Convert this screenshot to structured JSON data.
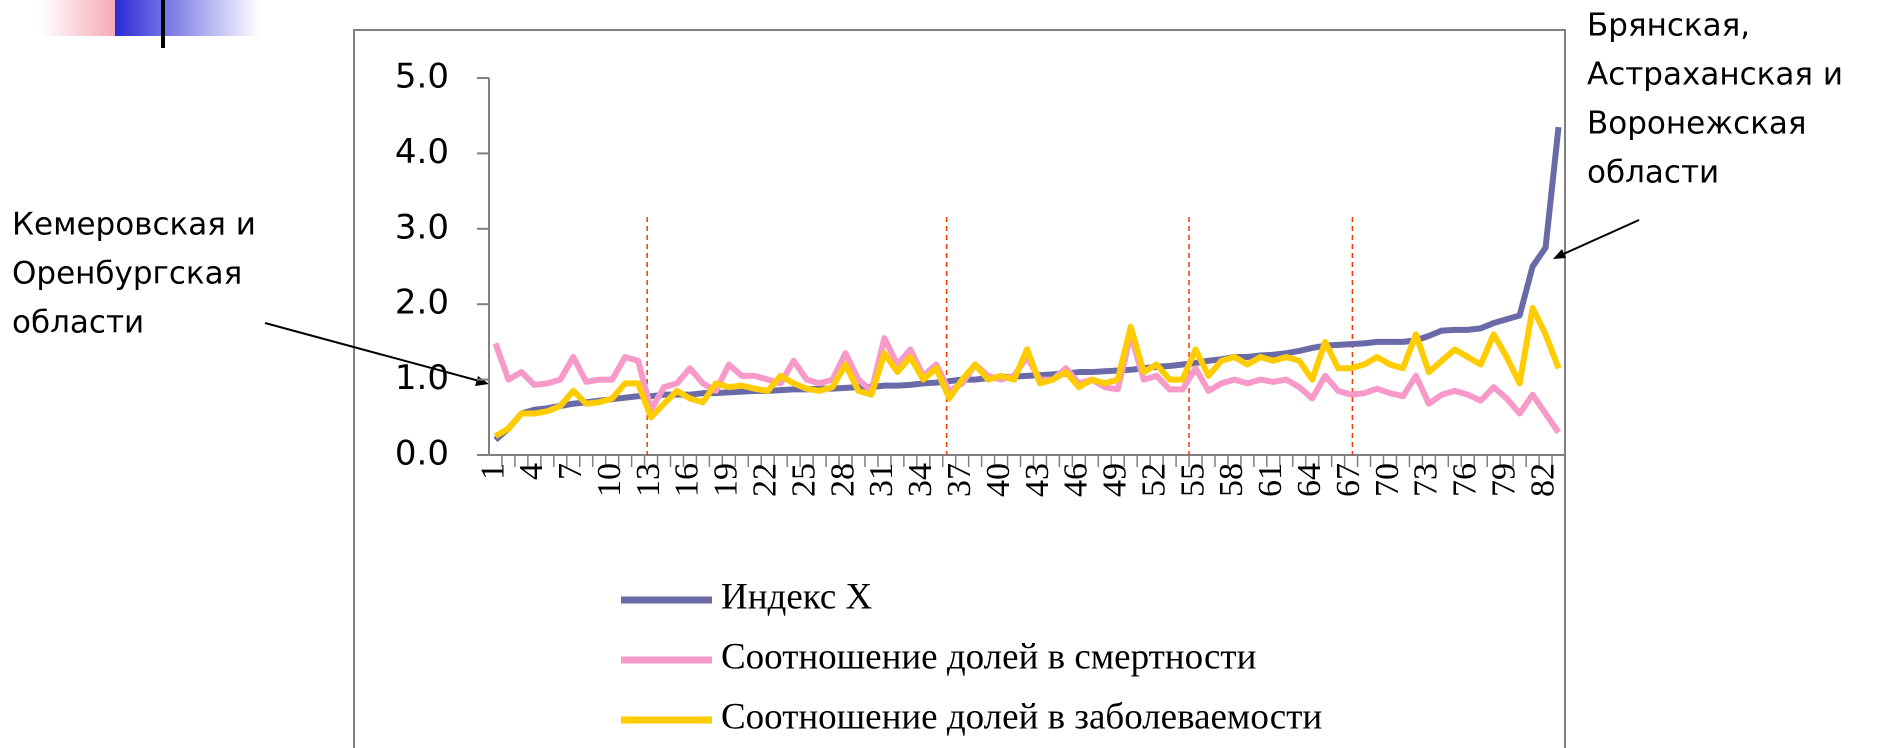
{
  "chart_data": {
    "type": "line",
    "categories": [
      1,
      null,
      null,
      4,
      null,
      null,
      7,
      null,
      null,
      10,
      null,
      null,
      13,
      null,
      null,
      16,
      null,
      null,
      19,
      null,
      null,
      22,
      null,
      null,
      25,
      null,
      null,
      28,
      null,
      null,
      31,
      null,
      null,
      34,
      null,
      null,
      37,
      null,
      null,
      40,
      null,
      null,
      43,
      null,
      null,
      46,
      null,
      null,
      49,
      null,
      null,
      52,
      null,
      null,
      55,
      null,
      null,
      58,
      null,
      null,
      61,
      null,
      null,
      64,
      null,
      null,
      67,
      null,
      null,
      70,
      null,
      null,
      73,
      null,
      null,
      76,
      null,
      null,
      79,
      null,
      null,
      82,
      null
    ],
    "series": [
      {
        "name": "Индекс X",
        "color": "#6a6aa8",
        "values": [
          0.2,
          0.35,
          0.55,
          0.6,
          0.62,
          0.65,
          0.68,
          0.7,
          0.72,
          0.74,
          0.76,
          0.78,
          0.78,
          0.8,
          0.8,
          0.8,
          0.82,
          0.82,
          0.83,
          0.84,
          0.85,
          0.85,
          0.86,
          0.87,
          0.87,
          0.88,
          0.88,
          0.89,
          0.9,
          0.9,
          0.92,
          0.92,
          0.93,
          0.95,
          0.96,
          0.98,
          1.0,
          1.0,
          1.02,
          1.03,
          1.04,
          1.05,
          1.06,
          1.07,
          1.08,
          1.1,
          1.1,
          1.11,
          1.12,
          1.13,
          1.15,
          1.17,
          1.18,
          1.2,
          1.22,
          1.25,
          1.27,
          1.3,
          1.3,
          1.32,
          1.33,
          1.35,
          1.38,
          1.42,
          1.45,
          1.46,
          1.47,
          1.48,
          1.5,
          1.5,
          1.5,
          1.52,
          1.58,
          1.65,
          1.66,
          1.66,
          1.68,
          1.75,
          1.8,
          1.85,
          2.5,
          2.75,
          4.35
        ]
      },
      {
        "name": "Соотношение долей в смертности",
        "color": "#f79ac9",
        "values": [
          1.48,
          1.0,
          1.1,
          0.93,
          0.95,
          1.0,
          1.3,
          0.97,
          1.0,
          1.0,
          1.3,
          1.25,
          0.6,
          0.9,
          0.95,
          1.15,
          0.95,
          0.85,
          1.2,
          1.05,
          1.05,
          1.0,
          0.95,
          1.25,
          1.0,
          0.95,
          1.0,
          1.35,
          1.0,
          0.85,
          1.55,
          1.2,
          1.4,
          1.05,
          1.2,
          0.85,
          0.95,
          1.2,
          1.05,
          1.0,
          1.05,
          1.3,
          1.0,
          1.0,
          1.15,
          0.95,
          1.0,
          0.9,
          0.87,
          1.6,
          1.0,
          1.05,
          0.87,
          0.87,
          1.15,
          0.85,
          0.95,
          1.0,
          0.95,
          1.0,
          0.97,
          1.0,
          0.9,
          0.75,
          1.05,
          0.85,
          0.8,
          0.82,
          0.88,
          0.82,
          0.78,
          1.05,
          0.68,
          0.8,
          0.85,
          0.8,
          0.72,
          0.9,
          0.75,
          0.55,
          0.8,
          0.55,
          0.3
        ]
      },
      {
        "name": "Соотношение долей в заболеваемости",
        "color": "#ffcc00",
        "values": [
          0.25,
          0.35,
          0.55,
          0.55,
          0.58,
          0.65,
          0.85,
          0.68,
          0.7,
          0.75,
          0.95,
          0.95,
          0.5,
          0.68,
          0.85,
          0.75,
          0.7,
          0.95,
          0.9,
          0.92,
          0.88,
          0.85,
          1.05,
          0.95,
          0.88,
          0.85,
          0.9,
          1.2,
          0.85,
          0.8,
          1.35,
          1.1,
          1.3,
          1.0,
          1.15,
          0.75,
          1.0,
          1.2,
          1.0,
          1.05,
          1.0,
          1.4,
          0.95,
          1.0,
          1.1,
          0.9,
          1.0,
          0.95,
          1.0,
          1.7,
          1.1,
          1.2,
          1.0,
          1.0,
          1.4,
          1.05,
          1.25,
          1.3,
          1.2,
          1.3,
          1.25,
          1.3,
          1.25,
          1.0,
          1.5,
          1.15,
          1.15,
          1.2,
          1.3,
          1.2,
          1.15,
          1.6,
          1.1,
          1.25,
          1.4,
          1.3,
          1.2,
          1.6,
          1.3,
          0.95,
          1.95,
          1.6,
          1.15
        ]
      }
    ],
    "ylim": [
      0,
      5
    ],
    "yticks": [
      {
        "value": 0,
        "label": "0.0"
      },
      {
        "value": 1,
        "label": "1.0"
      },
      {
        "value": 2,
        "label": "2.0"
      },
      {
        "value": 3,
        "label": "3.0"
      },
      {
        "value": 4,
        "label": "4.0"
      },
      {
        "value": 5,
        "label": "5.0"
      }
    ],
    "dividers": [
      12.7,
      35.8,
      54.5,
      67.1
    ],
    "divider_color": "#ff3300",
    "annotations": [
      {
        "lines": [
          "Кемеровская и",
          "Оренбургская",
          "области"
        ]
      },
      {
        "lines": [
          "Брянская,",
          "Астраханская и",
          "Воронежская",
          "области"
        ]
      }
    ]
  }
}
